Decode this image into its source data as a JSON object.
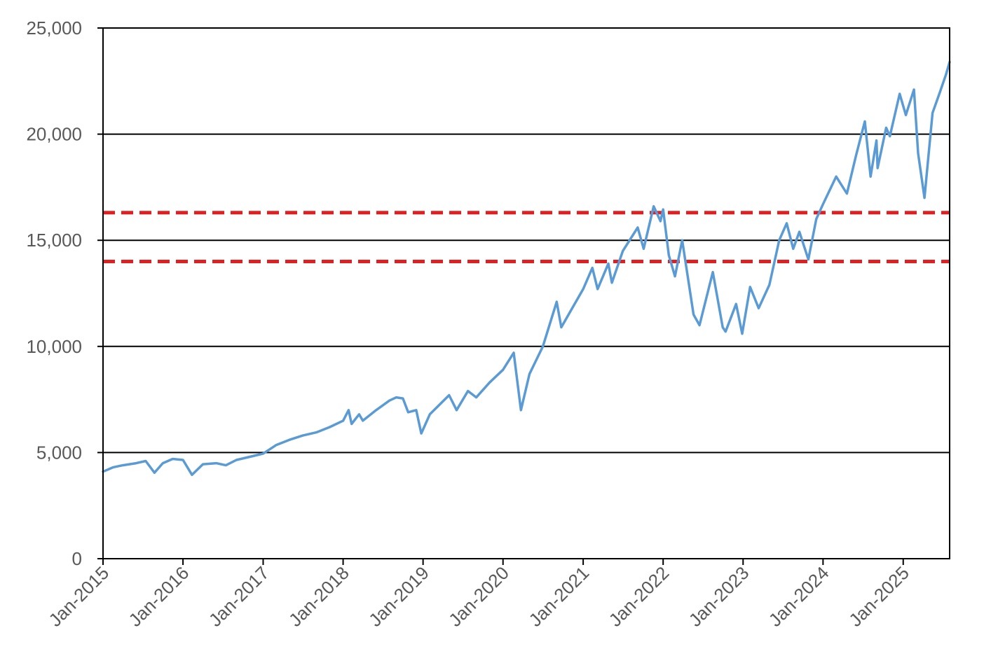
{
  "chart_data": {
    "type": "line",
    "title": "",
    "xlabel": "",
    "ylabel": "",
    "x_range": [
      "2015-01-01",
      "2025-08-01"
    ],
    "ylim": [
      0,
      25000
    ],
    "yticks": [
      0,
      5000,
      10000,
      15000,
      20000,
      25000
    ],
    "ytick_labels": [
      "0",
      "5,000",
      "10,000",
      "15,000",
      "20,000",
      "25,000"
    ],
    "xticks": [
      "2015-01-01",
      "2016-01-01",
      "2017-01-01",
      "2018-01-01",
      "2019-01-01",
      "2020-01-01",
      "2021-01-01",
      "2022-01-01",
      "2023-01-01",
      "2024-01-01",
      "2025-01-01"
    ],
    "xtick_labels": [
      "Jan-2015",
      "Jan-2016",
      "Jan-2017",
      "Jan-2018",
      "Jan-2019",
      "Jan-2020",
      "Jan-2021",
      "Jan-2022",
      "Jan-2023",
      "Jan-2024",
      "Jan-2025"
    ],
    "grid": "horizontal major gridlines",
    "legend": "none",
    "series": [
      {
        "color": "#5b9bd5",
        "style": "solid",
        "points": [
          [
            "2015-01-01",
            4100
          ],
          [
            "2015-02-15",
            4300
          ],
          [
            "2015-04-01",
            4400
          ],
          [
            "2015-06-01",
            4500
          ],
          [
            "2015-07-15",
            4600
          ],
          [
            "2015-08-24",
            4050
          ],
          [
            "2015-10-01",
            4500
          ],
          [
            "2015-11-15",
            4700
          ],
          [
            "2016-01-01",
            4650
          ],
          [
            "2016-02-11",
            3950
          ],
          [
            "2016-04-01",
            4450
          ],
          [
            "2016-06-01",
            4500
          ],
          [
            "2016-07-15",
            4400
          ],
          [
            "2016-09-01",
            4650
          ],
          [
            "2016-11-01",
            4800
          ],
          [
            "2017-01-01",
            4950
          ],
          [
            "2017-03-01",
            5350
          ],
          [
            "2017-05-01",
            5600
          ],
          [
            "2017-07-01",
            5800
          ],
          [
            "2017-09-01",
            5950
          ],
          [
            "2017-11-01",
            6200
          ],
          [
            "2018-01-01",
            6500
          ],
          [
            "2018-01-26",
            7000
          ],
          [
            "2018-02-09",
            6350
          ],
          [
            "2018-03-15",
            6800
          ],
          [
            "2018-04-01",
            6500
          ],
          [
            "2018-06-01",
            7000
          ],
          [
            "2018-08-01",
            7450
          ],
          [
            "2018-09-01",
            7600
          ],
          [
            "2018-10-01",
            7550
          ],
          [
            "2018-10-25",
            6900
          ],
          [
            "2018-12-01",
            7000
          ],
          [
            "2018-12-24",
            5900
          ],
          [
            "2019-02-01",
            6800
          ],
          [
            "2019-04-30",
            7700
          ],
          [
            "2019-06-03",
            7000
          ],
          [
            "2019-07-25",
            7900
          ],
          [
            "2019-09-01",
            7600
          ],
          [
            "2019-11-01",
            8300
          ],
          [
            "2020-01-01",
            8900
          ],
          [
            "2020-02-19",
            9700
          ],
          [
            "2020-03-23",
            7000
          ],
          [
            "2020-05-01",
            8700
          ],
          [
            "2020-07-01",
            10000
          ],
          [
            "2020-09-02",
            12100
          ],
          [
            "2020-09-23",
            10900
          ],
          [
            "2020-11-01",
            11600
          ],
          [
            "2021-01-01",
            12700
          ],
          [
            "2021-02-12",
            13700
          ],
          [
            "2021-03-08",
            12700
          ],
          [
            "2021-04-26",
            13900
          ],
          [
            "2021-05-12",
            13000
          ],
          [
            "2021-07-01",
            14500
          ],
          [
            "2021-09-07",
            15600
          ],
          [
            "2021-10-04",
            14600
          ],
          [
            "2021-11-19",
            16600
          ],
          [
            "2021-12-20",
            15900
          ],
          [
            "2022-01-01",
            16450
          ],
          [
            "2022-01-27",
            14300
          ],
          [
            "2022-02-24",
            13300
          ],
          [
            "2022-03-29",
            15000
          ],
          [
            "2022-05-20",
            11500
          ],
          [
            "2022-06-16",
            11000
          ],
          [
            "2022-08-16",
            13500
          ],
          [
            "2022-09-30",
            10900
          ],
          [
            "2022-10-13",
            10700
          ],
          [
            "2022-11-30",
            12000
          ],
          [
            "2022-12-28",
            10600
          ],
          [
            "2023-02-02",
            12800
          ],
          [
            "2023-03-13",
            11800
          ],
          [
            "2023-05-01",
            12900
          ],
          [
            "2023-06-15",
            15000
          ],
          [
            "2023-07-19",
            15800
          ],
          [
            "2023-08-18",
            14600
          ],
          [
            "2023-09-15",
            15400
          ],
          [
            "2023-10-26",
            14100
          ],
          [
            "2023-12-01",
            16000
          ],
          [
            "2024-01-01",
            16700
          ],
          [
            "2024-03-01",
            18000
          ],
          [
            "2024-04-19",
            17200
          ],
          [
            "2024-05-31",
            19000
          ],
          [
            "2024-07-10",
            20600
          ],
          [
            "2024-08-05",
            18000
          ],
          [
            "2024-09-01",
            19700
          ],
          [
            "2024-09-06",
            18400
          ],
          [
            "2024-10-15",
            20300
          ],
          [
            "2024-11-01",
            19900
          ],
          [
            "2024-12-16",
            21900
          ],
          [
            "2025-01-13",
            20900
          ],
          [
            "2025-02-19",
            22100
          ],
          [
            "2025-03-10",
            19100
          ],
          [
            "2025-04-08",
            17000
          ],
          [
            "2025-05-15",
            21000
          ],
          [
            "2025-06-15",
            21900
          ],
          [
            "2025-07-15",
            22800
          ],
          [
            "2025-08-01",
            23400
          ]
        ]
      }
    ],
    "reference_lines": [
      {
        "y": 16300,
        "color": "#e02020",
        "style": "dashed"
      },
      {
        "y": 14000,
        "color": "#e02020",
        "style": "dashed"
      }
    ]
  },
  "colors": {
    "line": "#5b9bd5",
    "reference": "#e02020",
    "grid": "#000000",
    "axis": "#000000",
    "tick_text": "#595959"
  }
}
